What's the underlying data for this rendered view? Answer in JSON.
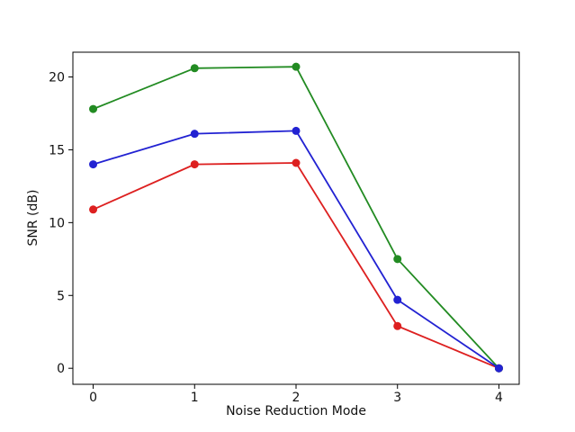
{
  "chart_data": {
    "type": "line",
    "title": "",
    "xlabel": "Noise Reduction Mode",
    "ylabel": "SNR (dB)",
    "x": [
      0,
      1,
      2,
      3,
      4
    ],
    "xticks": [
      0,
      1,
      2,
      3,
      4
    ],
    "yticks": [
      0,
      5,
      10,
      15,
      20
    ],
    "xlim": [
      -0.2,
      4.2
    ],
    "ylim": [
      -1.1,
      21.7
    ],
    "grid": false,
    "legend": null,
    "marker": "circle",
    "marker_radius": 4.5,
    "line_width": 1.8,
    "axis_color": "#000000",
    "background_color": "#ffffff",
    "series": [
      {
        "name": "red",
        "color": "#dd2020",
        "values": [
          10.9,
          14.0,
          14.1,
          2.9,
          0.0
        ]
      },
      {
        "name": "green",
        "color": "#228b22",
        "values": [
          17.8,
          20.6,
          20.7,
          7.5,
          0.0
        ]
      },
      {
        "name": "blue",
        "color": "#2222d2",
        "values": [
          14.0,
          16.1,
          16.3,
          4.7,
          0.0
        ]
      }
    ]
  }
}
